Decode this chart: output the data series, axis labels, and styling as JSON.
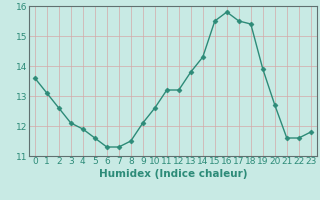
{
  "x": [
    0,
    1,
    2,
    3,
    4,
    5,
    6,
    7,
    8,
    9,
    10,
    11,
    12,
    13,
    14,
    15,
    16,
    17,
    18,
    19,
    20,
    21,
    22,
    23
  ],
  "y": [
    13.6,
    13.1,
    12.6,
    12.1,
    11.9,
    11.6,
    11.3,
    11.3,
    11.5,
    12.1,
    12.6,
    13.2,
    13.2,
    13.8,
    14.3,
    15.5,
    15.8,
    15.5,
    15.4,
    13.9,
    12.7,
    11.6,
    11.6,
    11.8
  ],
  "line_color": "#2d8b78",
  "marker": "D",
  "marker_size": 2.5,
  "bg_color": "#c8eae4",
  "grid_color": "#d4a8a8",
  "xlabel": "Humidex (Indice chaleur)",
  "ylim": [
    11,
    16
  ],
  "xlim": [
    -0.5,
    23.5
  ],
  "yticks": [
    11,
    12,
    13,
    14,
    15,
    16
  ],
  "xticks": [
    0,
    1,
    2,
    3,
    4,
    5,
    6,
    7,
    8,
    9,
    10,
    11,
    12,
    13,
    14,
    15,
    16,
    17,
    18,
    19,
    20,
    21,
    22,
    23
  ],
  "tick_fontsize": 6.5,
  "xlabel_fontsize": 7.5,
  "spine_color": "#607070"
}
